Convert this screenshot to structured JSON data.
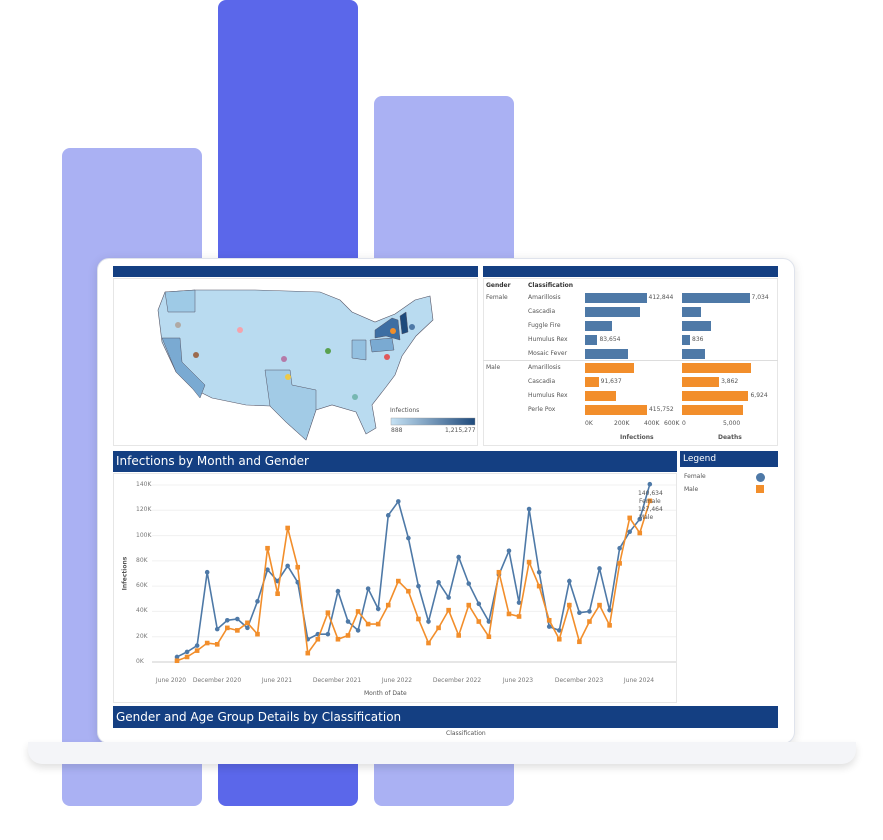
{
  "colors": {
    "bar_light": "#aab1f3",
    "bar_dark": "#5b67ea",
    "header": "#143f82",
    "female": "#4e79a7",
    "male": "#f28e2b"
  },
  "map_panel": {
    "legend_title": "Infections",
    "legend_min": "888",
    "legend_max": "1,215,277"
  },
  "bar_panel": {
    "col_gender": "Gender",
    "col_class": "Classification",
    "axis1_title": "Infections",
    "axis1_ticks": [
      "0K",
      "200K",
      "400K",
      "600K"
    ],
    "axis2_title": "Deaths",
    "axis2_ticks": [
      "0",
      "5,000"
    ],
    "groups": [
      {
        "gender": "Female",
        "rows": [
          {
            "name": "Amarillosis",
            "infections": 412844,
            "inf_label": "412,844",
            "deaths": 7034,
            "death_label": "7,034"
          },
          {
            "name": "Cascadia",
            "infections": 370000,
            "deaths": 2000
          },
          {
            "name": "Fuggle Fire",
            "infections": 180000,
            "deaths": 3000
          },
          {
            "name": "Humulus Rex",
            "infections": 83654,
            "inf_label": "83,654",
            "deaths": 836,
            "death_label": "836"
          },
          {
            "name": "Mosaic Fever",
            "infections": 290000,
            "deaths": 2400
          }
        ]
      },
      {
        "gender": "Male",
        "rows": [
          {
            "name": "Amarillosis",
            "infections": 330000,
            "deaths": 7200
          },
          {
            "name": "Cascadia",
            "infections": 91637,
            "inf_label": "91,637",
            "deaths": 3862,
            "death_label": "3,862"
          },
          {
            "name": "Humulus Rex",
            "infections": 208000,
            "deaths": 6924,
            "death_label": "6,924"
          },
          {
            "name": "Perle Pox",
            "infections": 415752,
            "inf_label": "415,752",
            "deaths": 6350
          }
        ]
      }
    ]
  },
  "line_panel": {
    "title": "Infections by Month and Gender"
  },
  "legend": {
    "title": "Legend",
    "items": [
      "Female",
      "Male"
    ]
  },
  "bottom_panel": {
    "title": "Gender and Age Group Details by Classification",
    "sub": "Classification"
  },
  "chart_data": {
    "type": "line",
    "xlabel": "Month of Date",
    "ylabel": "Infections",
    "x_start": "2020-08",
    "x_end": "2024-07",
    "x_ticks": [
      "June 2020",
      "December 2020",
      "June 2021",
      "December 2021",
      "June 2022",
      "December 2022",
      "June 2023",
      "December 2023",
      "June 2024"
    ],
    "y_ticks": [
      "0K",
      "20K",
      "40K",
      "60K",
      "80K",
      "100K",
      "120K",
      "140K"
    ],
    "ylim": [
      0,
      140000
    ],
    "series": [
      {
        "name": "Female",
        "marker": "circle",
        "values": [
          4,
          8,
          13,
          71,
          26,
          33,
          34,
          27,
          48,
          73,
          64,
          76,
          63,
          18,
          22,
          22,
          56,
          32,
          25,
          58,
          42,
          116,
          127,
          98,
          60,
          32,
          63,
          51,
          83,
          62,
          46,
          32,
          69,
          88,
          47,
          121,
          71,
          28,
          25,
          64,
          39,
          40,
          74,
          41,
          90,
          103,
          113,
          140.634
        ],
        "end_label": "140,634",
        "end_series_label": "Female"
      },
      {
        "name": "Male",
        "marker": "square",
        "values": [
          1,
          4,
          9,
          15,
          14,
          27,
          25,
          31,
          22,
          90,
          54,
          106,
          75,
          7,
          18,
          39,
          18,
          21,
          40,
          30,
          30,
          45,
          64,
          56,
          34,
          15,
          27,
          41,
          21,
          45,
          32,
          20,
          71,
          38,
          36,
          79,
          60,
          33,
          18,
          45,
          16,
          32,
          45,
          29,
          78,
          114,
          102,
          127.464
        ],
        "end_label": "127,464",
        "end_series_label": "Male"
      }
    ],
    "values_unit": "thousands"
  }
}
